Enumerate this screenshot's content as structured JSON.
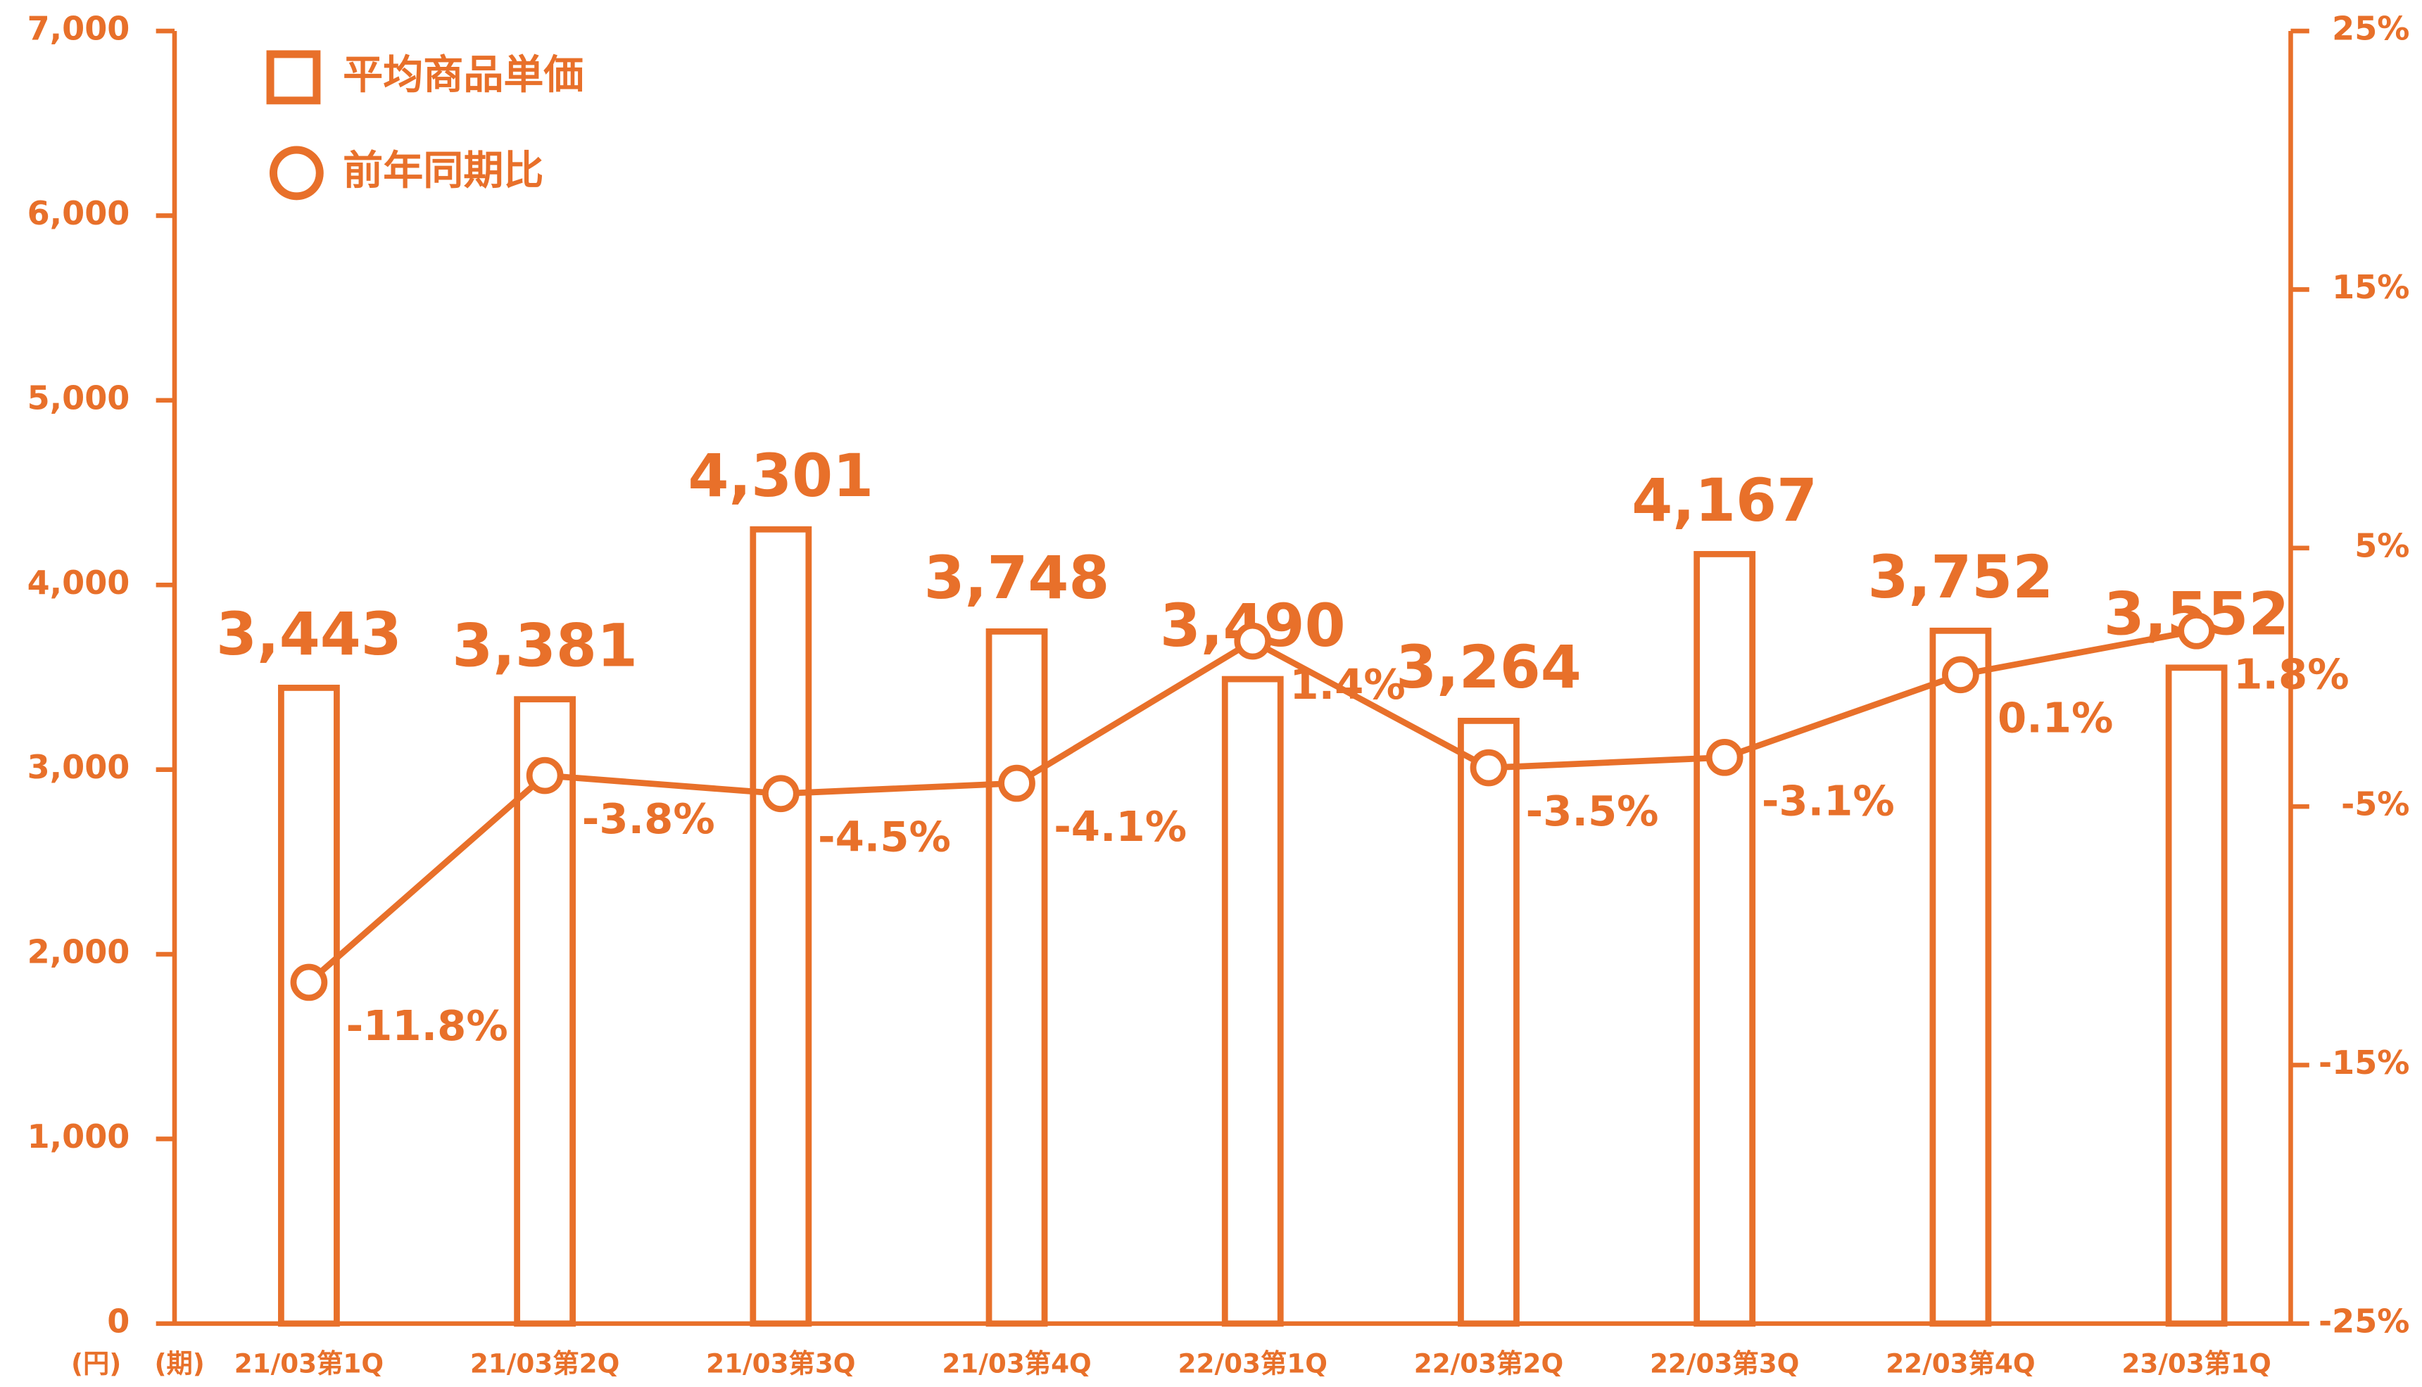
{
  "chart_data": {
    "type": "combo",
    "y_unit": "(円)",
    "x_unit": "(期)",
    "categories": [
      "21/03第1Q",
      "21/03第2Q",
      "21/03第3Q",
      "21/03第4Q",
      "22/03第1Q",
      "22/03第2Q",
      "22/03第3Q",
      "22/03第4Q",
      "23/03第1Q"
    ],
    "series": [
      {
        "name": "平均商品単価",
        "type": "bar",
        "color": "#e8702a",
        "values": [
          3443,
          3381,
          4301,
          3748,
          3490,
          3264,
          4167,
          3752,
          3552
        ],
        "value_labels": [
          "3,443",
          "3,381",
          "4,301",
          "3,748",
          "3,490",
          "3,264",
          "4,167",
          "3,752",
          "3,552"
        ]
      },
      {
        "name": "前年同期比",
        "type": "line",
        "axis": "y2",
        "color": "#e8702a",
        "values": [
          -11.8,
          -3.8,
          -4.5,
          -4.1,
          1.4,
          -3.5,
          -3.1,
          0.1,
          1.8
        ],
        "value_labels": [
          "-11.8%",
          "-3.8%",
          "-4.5%",
          "-4.1%",
          "1.4%",
          "-3.5%",
          "-3.1%",
          "0.1%",
          "1.8%"
        ]
      }
    ],
    "ylim": [
      0,
      7000
    ],
    "yticks": [
      0,
      {
        "value": 1000,
        "label": "1,000"
      },
      {
        "value": 2000,
        "label": "2,000"
      },
      {
        "value": 3000,
        "label": "3,000"
      },
      {
        "value": 4000,
        "label": "4,000"
      },
      {
        "value": 5000,
        "label": "5,000"
      },
      {
        "value": 6000,
        "label": "6,000"
      },
      {
        "value": 7000,
        "label": "7,000"
      }
    ],
    "y2lim": [
      -25,
      25
    ],
    "y2ticks": [
      {
        "value": -25,
        "label": "-25%"
      },
      {
        "value": -15,
        "label": "-15%"
      },
      {
        "value": -5,
        "label": "-5%"
      },
      {
        "value": 5,
        "label": "5%"
      },
      {
        "value": 15,
        "label": "15%"
      },
      {
        "value": 25,
        "label": "25%"
      }
    ],
    "grid": false,
    "legend": "upper left"
  }
}
